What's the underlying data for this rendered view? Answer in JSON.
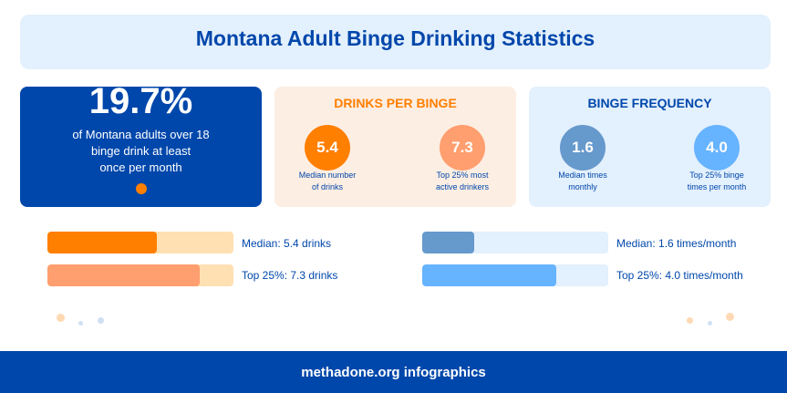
{
  "title": "Montana Adult Binge Drinking Statistics",
  "highlight": {
    "value": "19.7%",
    "line1": "of Montana adults over 18",
    "line2": "binge drink at least",
    "line3": "once per month"
  },
  "drinks": {
    "heading": "DRINKS PER BINGE",
    "median": {
      "value": "5.4",
      "label1": "Median number",
      "label2": "of drinks"
    },
    "top": {
      "value": "7.3",
      "label1": "Top 25% most",
      "label2": "active drinkers"
    }
  },
  "frequency": {
    "heading": "BINGE FREQUENCY",
    "median": {
      "value": "1.6",
      "label1": "Median times",
      "label2": "monthly"
    },
    "top": {
      "value": "4.0",
      "label1": "Top 25% binge",
      "label2": "times per month"
    }
  },
  "bars": [
    {
      "label": "Median: 5.4 drinks",
      "fill_fraction": 0.59,
      "color": "#ff7f00",
      "track": "#ffe0b3"
    },
    {
      "label": "Top 25%: 7.3 drinks",
      "fill_fraction": 0.82,
      "color": "#ff9e6e",
      "track": "#ffe0b3"
    },
    {
      "label": "Median: 1.6 times/month",
      "fill_fraction": 0.28,
      "color": "#6699cc",
      "track": "#e3f0fd"
    },
    {
      "label": "Top 25%: 4.0 times/month",
      "fill_fraction": 0.72,
      "color": "#66b3ff",
      "track": "#e3f0fd"
    }
  ],
  "colors": {
    "brand": "#0047ab",
    "accent": "#ff7f00"
  },
  "footer": "methadone.org infographics"
}
